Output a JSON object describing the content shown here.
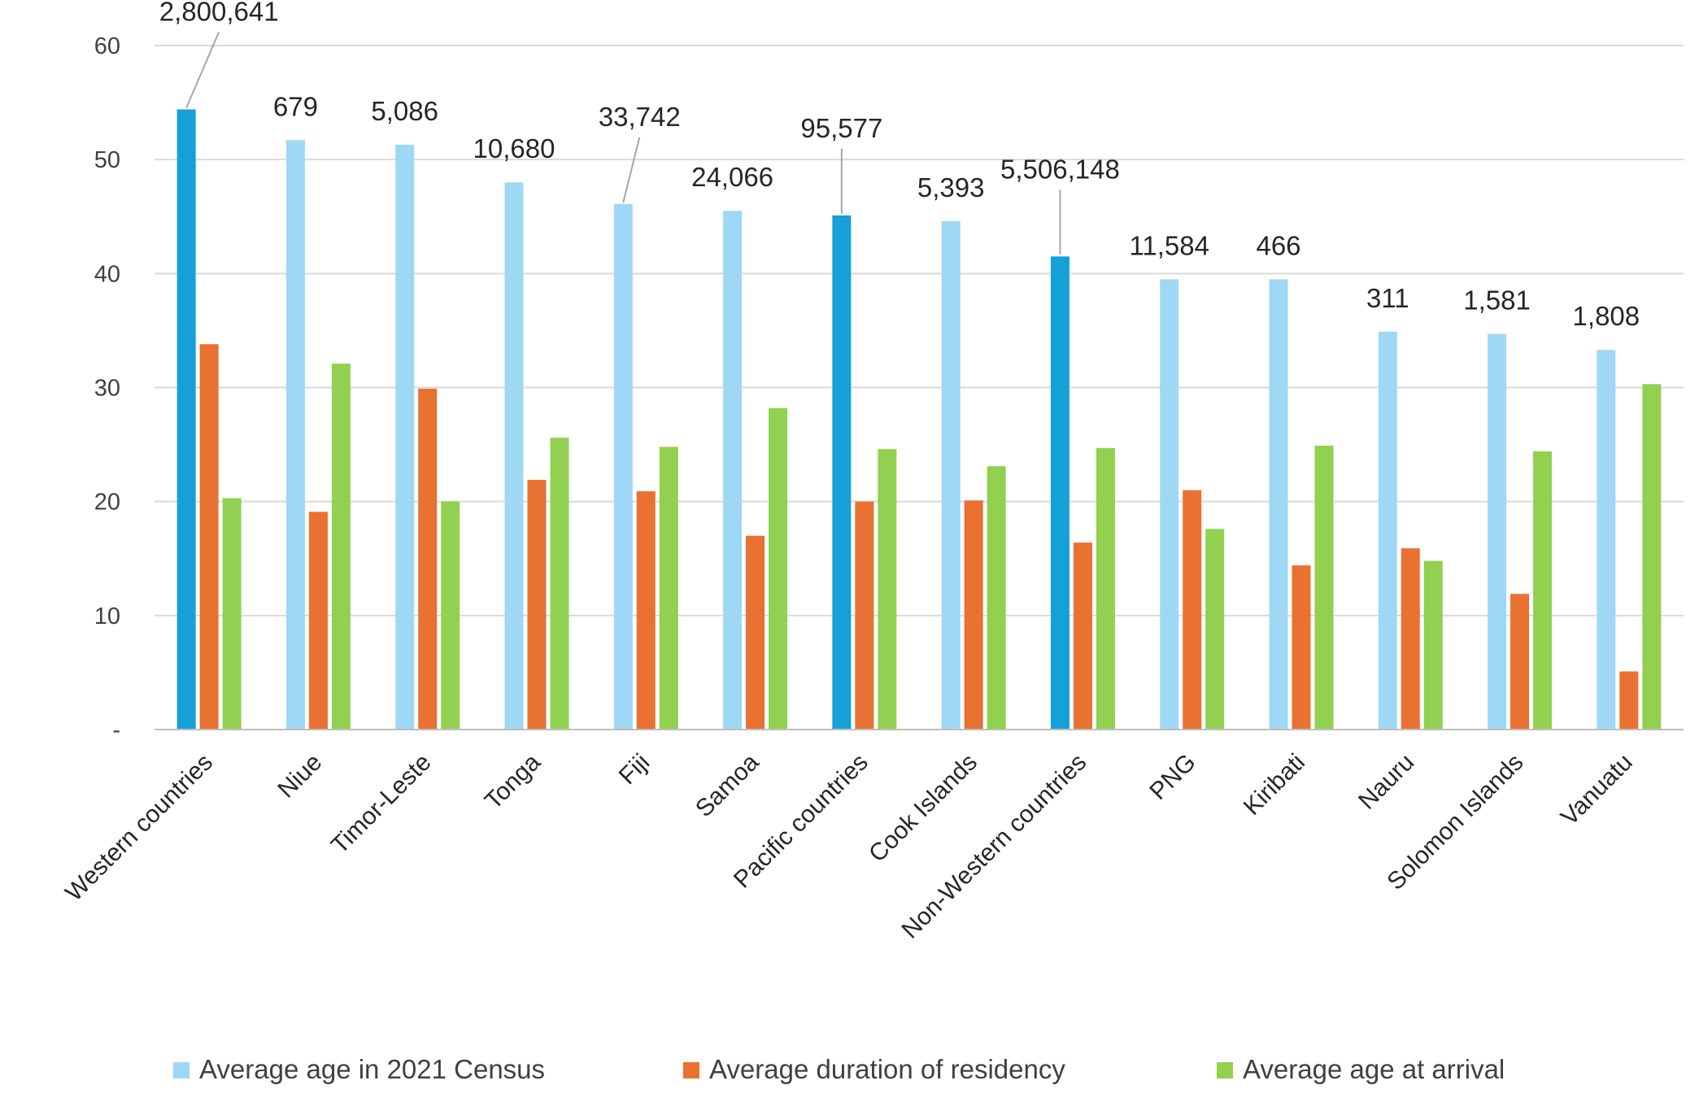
{
  "chart_data": {
    "type": "bar",
    "title": "",
    "xlabel": "",
    "ylabel": "",
    "ylim": [
      0,
      60
    ],
    "yticks": [
      {
        "value": 0,
        "label": "-"
      },
      {
        "value": 10,
        "label": "10"
      },
      {
        "value": 20,
        "label": "20"
      },
      {
        "value": 30,
        "label": "30"
      },
      {
        "value": 40,
        "label": "40"
      },
      {
        "value": 50,
        "label": "50"
      },
      {
        "value": 60,
        "label": "60"
      }
    ],
    "grid": true,
    "legend_position": "bottom",
    "categories": [
      "Western countries",
      "Niue",
      "Timor-Leste",
      "Tonga",
      "Fiji",
      "Samoa",
      "Pacific countries",
      "Cook Islands",
      "Non-Western countries",
      "PNG",
      "Kiribati",
      "Nauru",
      "Solomon Islands",
      "Vanuatu"
    ],
    "highlighted_categories": [
      "Western countries",
      "Pacific countries",
      "Non-Western countries"
    ],
    "series": [
      {
        "name": "Average age in 2021 Census",
        "color": "#9ed8f5",
        "highlight_color": "#15a0d8",
        "values": [
          54.4,
          51.7,
          51.3,
          48.0,
          46.1,
          45.5,
          45.1,
          44.6,
          41.5,
          39.5,
          39.5,
          34.9,
          34.7,
          33.3
        ]
      },
      {
        "name": "Average duration of residency",
        "color": "#e97131",
        "values": [
          33.8,
          19.1,
          29.9,
          21.9,
          20.9,
          17.0,
          20.0,
          20.1,
          16.4,
          21.0,
          14.4,
          15.9,
          11.9,
          5.1
        ]
      },
      {
        "name": "Average age at arrival",
        "color": "#92d050",
        "values": [
          20.3,
          32.1,
          20.0,
          25.6,
          24.8,
          28.2,
          24.6,
          23.1,
          24.7,
          17.6,
          24.9,
          14.8,
          24.4,
          30.3
        ]
      }
    ],
    "data_labels": [
      "2,800,641",
      "679",
      "5,086",
      "10,680",
      "33,742",
      "24,066",
      "95,577",
      "5,393",
      "5,506,148",
      "11,584",
      "466",
      "311",
      "1,581",
      "1,808"
    ]
  }
}
